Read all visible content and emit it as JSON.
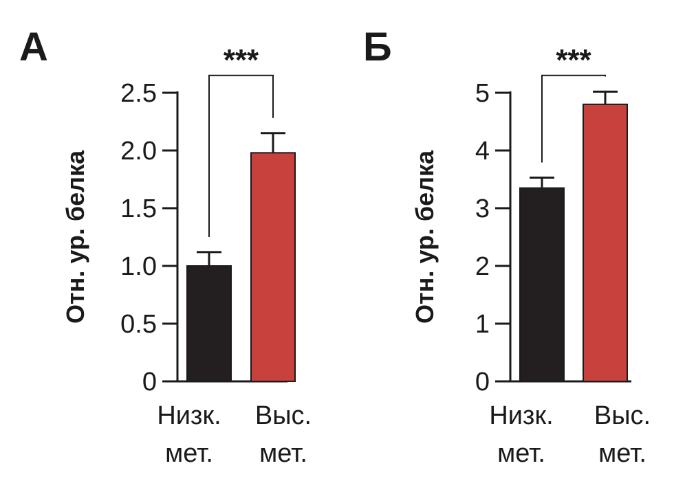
{
  "chart_data": [
    {
      "type": "bar",
      "panel_label": "А",
      "ylabel": "Отн. ур. белка",
      "categories": [
        "Низк. мет.",
        "Выс. мет."
      ],
      "category_lines": [
        [
          "Низк.",
          "мет."
        ],
        [
          "Выс.",
          "мет."
        ]
      ],
      "values": [
        1.0,
        1.98
      ],
      "errors": [
        0.12,
        0.17
      ],
      "colors": [
        "#231f20",
        "#c9413d"
      ],
      "ylim": [
        0,
        2.5
      ],
      "yticks": [
        0,
        0.5,
        1.0,
        1.5,
        2.0,
        2.5
      ],
      "ytick_labels": [
        "0",
        "0.5",
        "1.0",
        "1.5",
        "2.0",
        "2.5"
      ],
      "significance": "***",
      "bracket_top": 2.65
    },
    {
      "type": "bar",
      "panel_label": "Б",
      "ylabel": "Отн. ур. белка",
      "categories": [
        "Низк. мет.",
        "Выс. мет."
      ],
      "category_lines": [
        [
          "Низк.",
          "мет."
        ],
        [
          "Выс.",
          "мет."
        ]
      ],
      "values": [
        3.35,
        4.8
      ],
      "errors": [
        0.18,
        0.22
      ],
      "colors": [
        "#231f20",
        "#c9413d"
      ],
      "ylim": [
        0,
        5
      ],
      "yticks": [
        0,
        1,
        2,
        3,
        4,
        5
      ],
      "ytick_labels": [
        "0",
        "1",
        "2",
        "3",
        "4",
        "5"
      ],
      "significance": "***",
      "bracket_top": 5.3
    }
  ]
}
